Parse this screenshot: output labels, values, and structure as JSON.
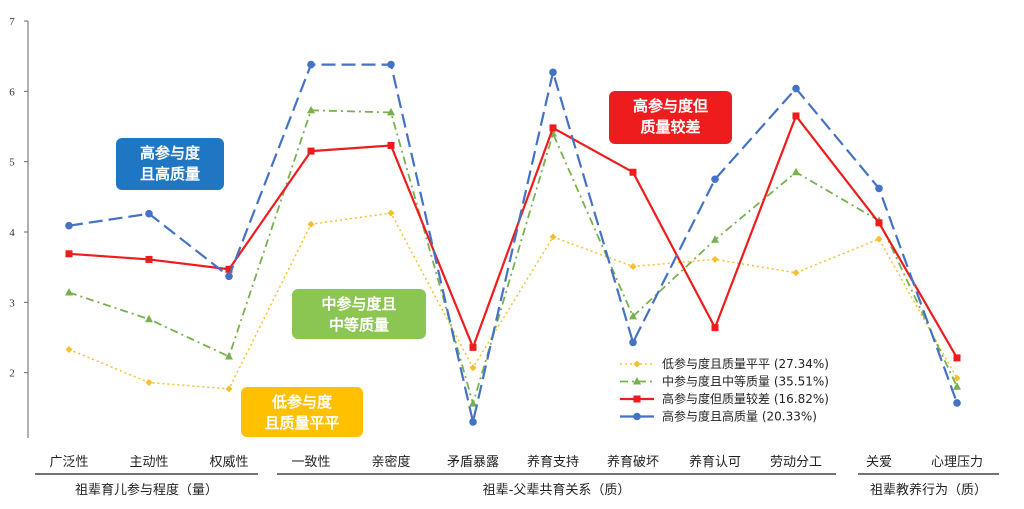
{
  "chart_data": {
    "type": "line",
    "ylim": [
      1,
      7
    ],
    "yticks": [
      2,
      3,
      4,
      5,
      6,
      7
    ],
    "categories": [
      "广泛性",
      "主动性",
      "权威性",
      "一致性",
      "亲密度",
      "矛盾暴露",
      "养育支持",
      "养育破坏",
      "养育认可",
      "劳动分工",
      "关爱",
      "心理压力"
    ],
    "groups": [
      {
        "label": "祖辈育儿参与程度（量）",
        "from": 0,
        "to": 2
      },
      {
        "label": "祖辈-父辈共育关系（质）",
        "from": 3,
        "to": 9
      },
      {
        "label": "祖辈教养行为（质）",
        "from": 10,
        "to": 11
      }
    ],
    "series": [
      {
        "name": "低参与度且质量平平 (27.34%)",
        "color": "#F6C02C",
        "dash": "2,3",
        "marker": "diamond",
        "width": 1.5,
        "values": [
          2.33,
          1.86,
          1.77,
          4.11,
          4.27,
          2.07,
          3.93,
          3.51,
          3.61,
          3.42,
          3.9,
          1.92
        ]
      },
      {
        "name": "中参与度且中等质量 (35.51%)",
        "color": "#77B14F",
        "dash": "8,4,2,4",
        "marker": "triangle",
        "width": 1.8,
        "values": [
          3.14,
          2.76,
          2.23,
          5.73,
          5.7,
          1.56,
          5.4,
          2.8,
          3.89,
          4.85,
          4.16,
          1.8
        ]
      },
      {
        "name": "高参与度但质量较差 (16.82%)",
        "color": "#EE1C1C",
        "dash": "",
        "marker": "square",
        "width": 2.2,
        "values": [
          3.69,
          3.61,
          3.47,
          5.15,
          5.23,
          2.36,
          5.48,
          4.85,
          2.64,
          5.65,
          4.13,
          2.21
        ]
      },
      {
        "name": "高参与度且高质量 (20.33%)",
        "color": "#4472C4",
        "dash": "14,6",
        "marker": "circle",
        "width": 2.2,
        "values": [
          4.09,
          4.26,
          3.37,
          6.38,
          6.38,
          1.3,
          6.27,
          2.43,
          4.75,
          6.04,
          4.62,
          1.57
        ]
      }
    ],
    "annotations": [
      {
        "lines": [
          "高参与度",
          "且高质量"
        ],
        "color": "#1F77C4"
      },
      {
        "lines": [
          "中参与度且",
          "中等质量"
        ],
        "color": "#8BC653"
      },
      {
        "lines": [
          "低参与度",
          "且质量平平"
        ],
        "color": "#FFC000"
      },
      {
        "lines": [
          "高参与度但",
          "质量较差"
        ],
        "color": "#EE1C1C"
      }
    ],
    "legend_position": "bottom-right",
    "grid": false
  }
}
